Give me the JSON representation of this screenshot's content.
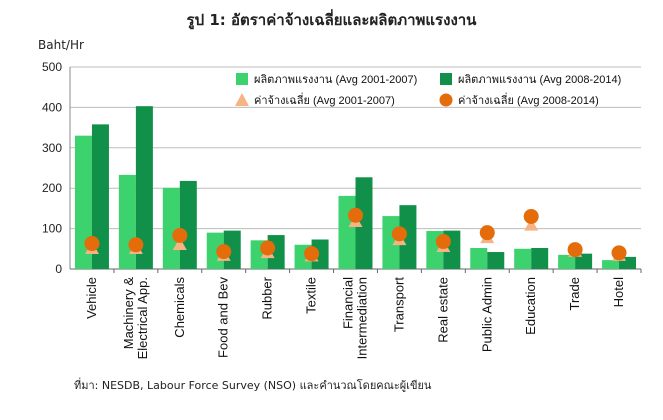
{
  "header": {
    "title": "รูป 1: อัตราค่าจ้างเฉลี่ยและผลิตภาพแรงงาน",
    "unit": "Baht/Hr"
  },
  "footer": {
    "source": "ที่มา: NESDB, Labour Force Survey (NSO) และคำนวณโดยคณะผู้เขียน"
  },
  "colors": {
    "productivity_2001": "#3cd26e",
    "productivity_2008": "#11904a",
    "wage_2001": "#f6b383",
    "wage_2008": "#e46c0a",
    "grid": "#bdbdbd"
  },
  "chart_data": {
    "type": "bar",
    "title": "รูป 1: อัตราค่าจ้างเฉลี่ยและผลิตภาพแรงงาน",
    "ylabel": "Baht/Hr",
    "xlabel": "",
    "ylim": [
      0,
      500
    ],
    "yticks": [
      0,
      100,
      200,
      300,
      400,
      500
    ],
    "grid": true,
    "legend_position": "top-right",
    "categories": [
      [
        "Vehicle"
      ],
      [
        "Machinery &",
        "Electrical App."
      ],
      [
        "Chemicals"
      ],
      [
        "Food and Bev"
      ],
      [
        "Rubber"
      ],
      [
        "Textile"
      ],
      [
        "Financial",
        "Intermediation"
      ],
      [
        "Transport"
      ],
      [
        "Real estate"
      ],
      [
        "Public Admin"
      ],
      [
        "Education"
      ],
      [
        "Trade"
      ],
      [
        "Hotel"
      ]
    ],
    "series": [
      {
        "name": "ผลิตภาพแรงงาน (Avg 2001-2007)",
        "kind": "bar",
        "color": "#3cd26e",
        "values": [
          330,
          233,
          201,
          90,
          71,
          60,
          181,
          131,
          94,
          52,
          50,
          35,
          22
        ]
      },
      {
        "name": "ผลิตภาพแรงงาน (Avg 2008-2014)",
        "kind": "bar",
        "color": "#11904a",
        "values": [
          358,
          403,
          218,
          95,
          84,
          73,
          227,
          158,
          95,
          42,
          52,
          38,
          30
        ]
      },
      {
        "name": "ค่าจ้างเฉลี่ย (Avg 2001-2007)",
        "kind": "triangle",
        "color": "#f6b383",
        "values": [
          50,
          50,
          60,
          33,
          40,
          32,
          117,
          72,
          55,
          77,
          108,
          43,
          33
        ]
      },
      {
        "name": "ค่าจ้างเฉลี่ย (Avg 2008-2014)",
        "kind": "circle",
        "color": "#e46c0a",
        "values": [
          63,
          60,
          83,
          43,
          52,
          38,
          133,
          87,
          68,
          90,
          130,
          48,
          40
        ]
      }
    ]
  }
}
